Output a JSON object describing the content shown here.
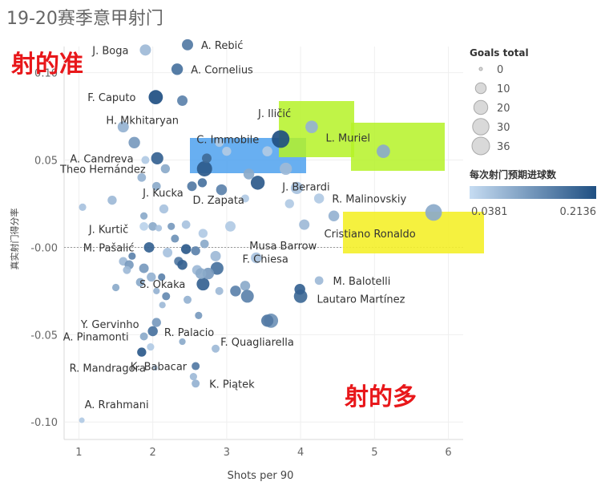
{
  "chart_data": {
    "type": "scatter",
    "title": "19-20赛季意甲射门",
    "xlabel": "Shots per 90",
    "ylabel": "真实射门得分率",
    "xlim": [
      0.8,
      6.2
    ],
    "ylim": [
      -0.11,
      0.115
    ],
    "xticks": [
      1,
      2,
      3,
      4,
      5,
      6
    ],
    "yticks": [
      0.1,
      0.05,
      0.0,
      -0.05,
      -0.1
    ],
    "ytick_labels": [
      "0.10",
      "0.05",
      "-0.00",
      "-0.05",
      "-0.10"
    ],
    "zero_reference_line": true,
    "size_legend": {
      "title": "Goals total",
      "values": [
        0,
        10,
        20,
        30,
        36
      ]
    },
    "color_legend": {
      "title": "每次射门预期进球数",
      "min": 0.0381,
      "max": 0.2136,
      "min_label": "0.0381",
      "max_label": "0.2136"
    },
    "annotations": [
      "射的准",
      "射的多"
    ],
    "points": [
      {
        "name": "A. Rebić",
        "x": 2.47,
        "y": 0.116,
        "goals": 11,
        "xg": 0.16
      },
      {
        "name": "J. Boga",
        "x": 1.9,
        "y": 0.113,
        "goals": 11,
        "xg": 0.08
      },
      {
        "name": "A. Cornelius",
        "x": 2.33,
        "y": 0.102,
        "goals": 12,
        "xg": 0.17
      },
      {
        "name": "F. Caputo",
        "x": 2.04,
        "y": 0.086,
        "goals": 21,
        "xg": 0.2136
      },
      {
        "name": "H. Mkhitaryan",
        "x": 2.4,
        "y": 0.084,
        "goals": 9,
        "xg": 0.15
      },
      {
        "name": "J. Iličić",
        "x": 4.15,
        "y": 0.069,
        "goals": 15,
        "xg": 0.09
      },
      {
        "name": "C. Immobile",
        "x": 3.73,
        "y": 0.062,
        "goals": 36,
        "xg": 0.2136
      },
      {
        "name": "L. Muriel",
        "x": 5.12,
        "y": 0.055,
        "goals": 18,
        "xg": 0.1
      },
      {
        "name": "A. Candreva",
        "x": 2.06,
        "y": 0.051,
        "goals": 14,
        "xg": 0.19
      },
      {
        "name": "J. Berardi",
        "x": 3.8,
        "y": 0.045,
        "goals": 14,
        "xg": 0.08
      },
      {
        "name": "Theo Hernández",
        "x": 2.7,
        "y": 0.045,
        "goals": 25,
        "xg": 0.2
      },
      {
        "name": "J. Kucka",
        "x": 2.67,
        "y": 0.037,
        "goals": 6,
        "xg": 0.17
      },
      {
        "name": "D. Zapata",
        "x": 3.42,
        "y": 0.037,
        "goals": 20,
        "xg": 0.2
      },
      {
        "name": "R. Malinovskiy",
        "x": 4.25,
        "y": 0.028,
        "goals": 8,
        "xg": 0.06
      },
      {
        "name": "Cristiano Ronaldo",
        "x": 5.8,
        "y": 0.02,
        "goals": 31,
        "xg": 0.1
      },
      {
        "name": "J. Kurtič",
        "x": 1.88,
        "y": 0.012,
        "goals": 5,
        "xg": 0.05
      },
      {
        "name": "Musa Barrow",
        "x": 4.05,
        "y": 0.013,
        "goals": 9,
        "xg": 0.08
      },
      {
        "name": "M. Pašalić",
        "x": 1.95,
        "y": 0.0,
        "goals": 9,
        "xg": 0.19
      },
      {
        "name": "F. Chiesa",
        "x": 3.4,
        "y": -0.006,
        "goals": 10,
        "xg": 0.07
      },
      {
        "name": "M. Balotelli",
        "x": 4.25,
        "y": -0.019,
        "goals": 5,
        "xg": 0.08
      },
      {
        "name": "S. Okaka",
        "x": 2.68,
        "y": -0.021,
        "goals": 16,
        "xg": 0.19
      },
      {
        "name": "Lautaro Martínez",
        "x": 4.0,
        "y": -0.028,
        "goals": 18,
        "xg": 0.18
      },
      {
        "name": "Y. Gervinho",
        "x": 2.05,
        "y": -0.043,
        "goals": 6,
        "xg": 0.12
      },
      {
        "name": "R. Palacio",
        "x": 2.0,
        "y": -0.048,
        "goals": 8,
        "xg": 0.17
      },
      {
        "name": "F. Quagliarella",
        "x": 3.6,
        "y": -0.042,
        "goals": 21,
        "xg": 0.13
      },
      {
        "name": "A. Pinamonti",
        "x": 1.88,
        "y": -0.051,
        "goals": 4,
        "xg": 0.1
      },
      {
        "name": "K. Babacar",
        "x": 2.58,
        "y": -0.068,
        "goals": 4,
        "xg": 0.16
      },
      {
        "name": "R. Mandragora",
        "x": 2.03,
        "y": -0.069,
        "goals": 1,
        "xg": 0.05
      },
      {
        "name": "K. Piątek",
        "x": 2.58,
        "y": -0.078,
        "goals": 4,
        "xg": 0.09
      },
      {
        "name": "A. Rrahmani",
        "x": 1.04,
        "y": -0.099,
        "goals": 1,
        "xg": 0.06
      },
      {
        "name": "",
        "x": 1.6,
        "y": 0.069,
        "goals": 11,
        "xg": 0.09
      },
      {
        "name": "",
        "x": 1.75,
        "y": 0.06,
        "goals": 12,
        "xg": 0.12
      },
      {
        "name": "",
        "x": 1.85,
        "y": 0.04,
        "goals": 5,
        "xg": 0.09
      },
      {
        "name": "",
        "x": 1.9,
        "y": 0.05,
        "goals": 4,
        "xg": 0.06
      },
      {
        "name": "",
        "x": 2.17,
        "y": 0.045,
        "goals": 6,
        "xg": 0.1
      },
      {
        "name": "",
        "x": 2.05,
        "y": 0.035,
        "goals": 5,
        "xg": 0.1
      },
      {
        "name": "",
        "x": 2.53,
        "y": 0.035,
        "goals": 7,
        "xg": 0.16
      },
      {
        "name": "",
        "x": 2.73,
        "y": 0.051,
        "goals": 7,
        "xg": 0.18
      },
      {
        "name": "",
        "x": 2.9,
        "y": 0.06,
        "goals": 5,
        "xg": 0.06
      },
      {
        "name": "",
        "x": 3.0,
        "y": 0.055,
        "goals": 6,
        "xg": 0.06
      },
      {
        "name": "",
        "x": 3.25,
        "y": 0.028,
        "goals": 4,
        "xg": 0.06
      },
      {
        "name": "",
        "x": 3.05,
        "y": 0.012,
        "goals": 9,
        "xg": 0.06
      },
      {
        "name": "",
        "x": 3.3,
        "y": 0.042,
        "goals": 10,
        "xg": 0.1
      },
      {
        "name": "",
        "x": 3.95,
        "y": 0.034,
        "goals": 14,
        "xg": 0.07
      },
      {
        "name": "",
        "x": 4.45,
        "y": 0.018,
        "goals": 10,
        "xg": 0.09
      },
      {
        "name": "",
        "x": 3.55,
        "y": 0.055,
        "goals": 8,
        "xg": 0.06
      },
      {
        "name": "",
        "x": 3.85,
        "y": 0.025,
        "goals": 6,
        "xg": 0.06
      },
      {
        "name": "",
        "x": 2.93,
        "y": 0.033,
        "goals": 10,
        "xg": 0.15
      },
      {
        "name": "",
        "x": 2.15,
        "y": 0.022,
        "goals": 6,
        "xg": 0.07
      },
      {
        "name": "",
        "x": 2.0,
        "y": 0.012,
        "goals": 5,
        "xg": 0.1
      },
      {
        "name": "",
        "x": 1.05,
        "y": 0.023,
        "goals": 3,
        "xg": 0.07
      },
      {
        "name": "",
        "x": 1.45,
        "y": 0.027,
        "goals": 6,
        "xg": 0.08
      },
      {
        "name": "",
        "x": 1.88,
        "y": 0.018,
        "goals": 3,
        "xg": 0.1
      },
      {
        "name": "",
        "x": 2.08,
        "y": 0.011,
        "goals": 2,
        "xg": 0.07
      },
      {
        "name": "",
        "x": 2.25,
        "y": 0.012,
        "goals": 3,
        "xg": 0.12
      },
      {
        "name": "",
        "x": 2.45,
        "y": 0.013,
        "goals": 5,
        "xg": 0.07
      },
      {
        "name": "",
        "x": 2.68,
        "y": 0.008,
        "goals": 6,
        "xg": 0.06
      },
      {
        "name": "",
        "x": 2.3,
        "y": 0.005,
        "goals": 4,
        "xg": 0.13
      },
      {
        "name": "",
        "x": 2.2,
        "y": -0.003,
        "goals": 7,
        "xg": 0.07
      },
      {
        "name": "",
        "x": 2.45,
        "y": -0.001,
        "goals": 8,
        "xg": 0.2
      },
      {
        "name": "",
        "x": 2.58,
        "y": -0.002,
        "goals": 6,
        "xg": 0.15
      },
      {
        "name": "",
        "x": 2.7,
        "y": 0.002,
        "goals": 5,
        "xg": 0.1
      },
      {
        "name": "",
        "x": 2.85,
        "y": -0.005,
        "goals": 9,
        "xg": 0.08
      },
      {
        "name": "",
        "x": 2.35,
        "y": -0.008,
        "goals": 6,
        "xg": 0.16
      },
      {
        "name": "",
        "x": 2.4,
        "y": -0.01,
        "goals": 8,
        "xg": 0.19
      },
      {
        "name": "",
        "x": 2.6,
        "y": -0.013,
        "goals": 8,
        "xg": 0.08
      },
      {
        "name": "",
        "x": 2.87,
        "y": -0.012,
        "goals": 16,
        "xg": 0.17
      },
      {
        "name": "",
        "x": 2.75,
        "y": -0.015,
        "goals": 12,
        "xg": 0.12
      },
      {
        "name": "",
        "x": 1.6,
        "y": -0.008,
        "goals": 5,
        "xg": 0.08
      },
      {
        "name": "",
        "x": 1.68,
        "y": -0.01,
        "goals": 6,
        "xg": 0.12
      },
      {
        "name": "",
        "x": 1.72,
        "y": -0.005,
        "goals": 3,
        "xg": 0.15
      },
      {
        "name": "",
        "x": 1.65,
        "y": -0.013,
        "goals": 4,
        "xg": 0.08
      },
      {
        "name": "",
        "x": 1.88,
        "y": -0.012,
        "goals": 7,
        "xg": 0.12
      },
      {
        "name": "",
        "x": 1.83,
        "y": -0.02,
        "goals": 5,
        "xg": 0.1
      },
      {
        "name": "",
        "x": 1.98,
        "y": -0.017,
        "goals": 6,
        "xg": 0.09
      },
      {
        "name": "",
        "x": 2.12,
        "y": -0.017,
        "goals": 3,
        "xg": 0.15
      },
      {
        "name": "",
        "x": 2.18,
        "y": -0.028,
        "goals": 4,
        "xg": 0.14
      },
      {
        "name": "",
        "x": 2.05,
        "y": -0.025,
        "goals": 2,
        "xg": 0.09
      },
      {
        "name": "",
        "x": 2.13,
        "y": -0.033,
        "goals": 2,
        "xg": 0.08
      },
      {
        "name": "",
        "x": 2.47,
        "y": -0.03,
        "goals": 4,
        "xg": 0.09
      },
      {
        "name": "",
        "x": 2.65,
        "y": -0.015,
        "goals": 10,
        "xg": 0.1
      },
      {
        "name": "",
        "x": 2.9,
        "y": -0.025,
        "goals": 4,
        "xg": 0.08
      },
      {
        "name": "",
        "x": 3.12,
        "y": -0.025,
        "goals": 10,
        "xg": 0.15
      },
      {
        "name": "",
        "x": 3.25,
        "y": -0.022,
        "goals": 8,
        "xg": 0.1
      },
      {
        "name": "",
        "x": 3.28,
        "y": -0.028,
        "goals": 16,
        "xg": 0.15
      },
      {
        "name": "",
        "x": 3.55,
        "y": -0.042,
        "goals": 14,
        "xg": 0.16
      },
      {
        "name": "",
        "x": 3.99,
        "y": -0.024,
        "goals": 10,
        "xg": 0.19
      },
      {
        "name": "",
        "x": 1.5,
        "y": -0.023,
        "goals": 3,
        "xg": 0.1
      },
      {
        "name": "",
        "x": 2.62,
        "y": -0.039,
        "goals": 3,
        "xg": 0.12
      },
      {
        "name": "",
        "x": 2.85,
        "y": -0.058,
        "goals": 4,
        "xg": 0.08
      },
      {
        "name": "",
        "x": 1.97,
        "y": -0.057,
        "goals": 3,
        "xg": 0.06
      },
      {
        "name": "",
        "x": 1.85,
        "y": -0.06,
        "goals": 6,
        "xg": 0.2
      },
      {
        "name": "",
        "x": 2.4,
        "y": -0.054,
        "goals": 2,
        "xg": 0.1
      },
      {
        "name": "",
        "x": 2.55,
        "y": -0.074,
        "goals": 3,
        "xg": 0.08
      }
    ]
  }
}
